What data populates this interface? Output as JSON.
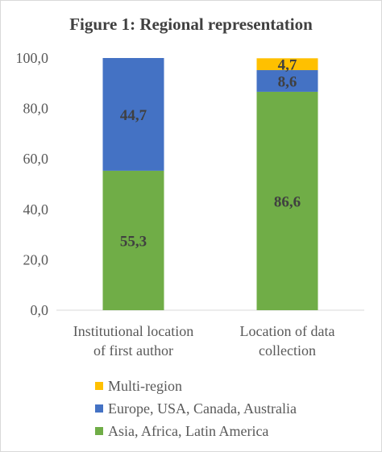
{
  "chart_data": {
    "type": "bar",
    "stacked": true,
    "title": "Figure 1: Regional representation",
    "categories": [
      [
        "Institutional location",
        "of first author"
      ],
      [
        "Location of data",
        "collection"
      ]
    ],
    "series": [
      {
        "name": "Asia, Africa, Latin America",
        "color": "#70ad47",
        "values": [
          55.3,
          86.6
        ],
        "labels": [
          "55,3",
          "86,6"
        ]
      },
      {
        "name": "Europe, USA, Canada, Australia",
        "color": "#4472c4",
        "values": [
          44.7,
          8.6
        ],
        "labels": [
          "44,7",
          "8,6"
        ]
      },
      {
        "name": "Multi-region",
        "color": "#ffc000",
        "values": [
          0,
          4.7
        ],
        "labels": [
          "",
          "4,7"
        ]
      }
    ],
    "yticks": [
      "0,0",
      "20,0",
      "40,0",
      "60,0",
      "80,0",
      "100,0"
    ],
    "ylim": [
      0,
      100
    ],
    "grid": false,
    "legend_position": "bottom"
  }
}
